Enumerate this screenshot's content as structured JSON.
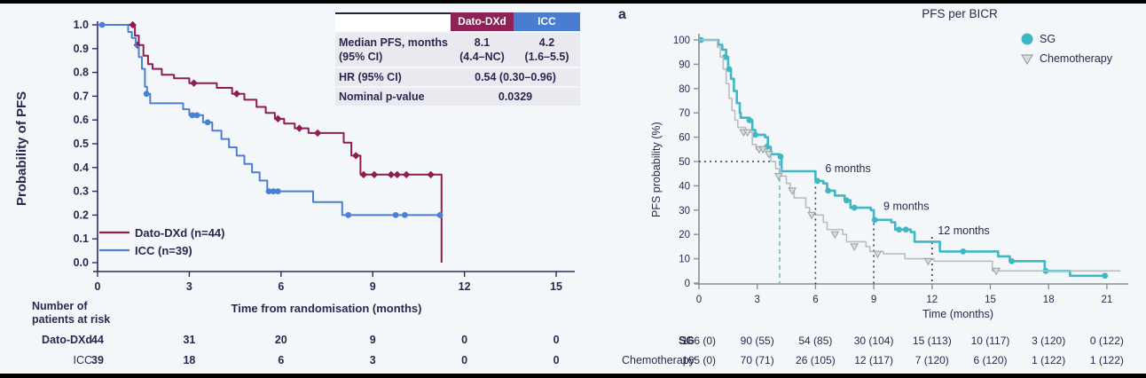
{
  "page": {
    "background": "#f4f7f9",
    "letterbox_color": "#000000",
    "text_color": "#2b2750"
  },
  "chart_data": [
    {
      "type": "line",
      "subtype": "kaplan-meier-step",
      "title": "",
      "xlabel": "Time from randomisation (months)",
      "ylabel": "Probability of PFS",
      "xlim": [
        0,
        15.6
      ],
      "ylim": [
        0.0,
        1.0
      ],
      "grid": false,
      "xticks": [
        "0",
        "3",
        "6",
        "9",
        "12",
        "15"
      ],
      "yticks": [
        "1.0",
        "0.9",
        "0.8",
        "0.7",
        "0.6",
        "0.5",
        "0.4",
        "0.3",
        "0.2",
        "0.1",
        "0.0"
      ],
      "legend_position": "lower-left-inside",
      "series": [
        {
          "name": "Dato-DXd (n=44)",
          "color": "#8f1d54",
          "marker": "diamond",
          "steps": [
            [
              0,
              1.0
            ],
            [
              1.1,
              1.0
            ],
            [
              1.22,
              0.955
            ],
            [
              1.35,
              0.915
            ],
            [
              1.5,
              0.87
            ],
            [
              1.65,
              0.835
            ],
            [
              1.8,
              0.815
            ],
            [
              2.1,
              0.79
            ],
            [
              2.5,
              0.775
            ],
            [
              3.0,
              0.755
            ],
            [
              3.9,
              0.735
            ],
            [
              4.4,
              0.71
            ],
            [
              4.8,
              0.685
            ],
            [
              5.2,
              0.655
            ],
            [
              5.5,
              0.63
            ],
            [
              5.8,
              0.605
            ],
            [
              6.1,
              0.585
            ],
            [
              6.45,
              0.565
            ],
            [
              6.9,
              0.545
            ],
            [
              8.05,
              0.505
            ],
            [
              8.3,
              0.45
            ],
            [
              8.6,
              0.37
            ],
            [
              11.25,
              0.37
            ],
            [
              11.25,
              0.0
            ]
          ],
          "censors": [
            [
              1.15,
              1.0
            ],
            [
              1.3,
              0.915
            ],
            [
              3.15,
              0.755
            ],
            [
              4.55,
              0.71
            ],
            [
              5.9,
              0.605
            ],
            [
              6.6,
              0.565
            ],
            [
              7.2,
              0.545
            ],
            [
              8.45,
              0.45
            ],
            [
              8.7,
              0.37
            ],
            [
              9.05,
              0.37
            ],
            [
              9.6,
              0.37
            ],
            [
              9.8,
              0.37
            ],
            [
              10.1,
              0.37
            ],
            [
              10.9,
              0.37
            ]
          ]
        },
        {
          "name": "ICC (n=39)",
          "color": "#4b7fd4",
          "marker": "circle",
          "steps": [
            [
              0,
              1.0
            ],
            [
              0.9,
              1.0
            ],
            [
              1.0,
              0.97
            ],
            [
              1.12,
              0.945
            ],
            [
              1.25,
              0.91
            ],
            [
              1.35,
              0.865
            ],
            [
              1.45,
              0.815
            ],
            [
              1.55,
              0.74
            ],
            [
              1.62,
              0.71
            ],
            [
              1.72,
              0.67
            ],
            [
              2.8,
              0.645
            ],
            [
              3.0,
              0.62
            ],
            [
              3.45,
              0.59
            ],
            [
              3.75,
              0.555
            ],
            [
              4.05,
              0.52
            ],
            [
              4.3,
              0.485
            ],
            [
              4.55,
              0.45
            ],
            [
              4.8,
              0.415
            ],
            [
              5.05,
              0.38
            ],
            [
              5.3,
              0.345
            ],
            [
              5.55,
              0.3
            ],
            [
              7.05,
              0.255
            ],
            [
              8.0,
              0.2
            ],
            [
              11.2,
              0.2
            ]
          ],
          "censors": [
            [
              0.15,
              1.0
            ],
            [
              1.6,
              0.71
            ],
            [
              3.1,
              0.62
            ],
            [
              3.25,
              0.62
            ],
            [
              3.6,
              0.59
            ],
            [
              5.6,
              0.3
            ],
            [
              5.75,
              0.3
            ],
            [
              5.9,
              0.3
            ],
            [
              8.2,
              0.2
            ],
            [
              9.75,
              0.2
            ],
            [
              10.05,
              0.2
            ],
            [
              11.2,
              0.2
            ]
          ]
        }
      ],
      "inset_table": {
        "col_headers": [
          "Dato-DXd",
          "ICC"
        ],
        "header_colors": [
          "#8d2257",
          "#4a7cd0"
        ],
        "row1_label_line1": "Median PFS, months",
        "row1_label_line2": "(95% CI)",
        "row1_dato_line1": "8.1",
        "row1_dato_line2": "(4.4–NC)",
        "row1_icc_line1": "4.2",
        "row1_icc_line2": "(1.6–5.5)",
        "row2_label": "HR (95% CI)",
        "row2_value": "0.54 (0.30–0.96)",
        "row3_label": "Nominal p-value",
        "row3_value": "0.0329"
      },
      "risk_table": {
        "label_line1": "Number of",
        "label_line2": "patients at risk",
        "rows": [
          {
            "name": "Dato-DXd",
            "values": [
              "44",
              "31",
              "20",
              "9",
              "0",
              "0"
            ]
          },
          {
            "name": "ICC",
            "values": [
              "39",
              "18",
              "6",
              "3",
              "0",
              "0"
            ]
          }
        ]
      }
    },
    {
      "type": "line",
      "subtype": "kaplan-meier-step",
      "panel_label": "a",
      "title": "PFS per BICR",
      "xlabel": "Time (months)",
      "ylabel": "PFS probability (%)",
      "xlim": [
        0,
        22
      ],
      "ylim": [
        0,
        100
      ],
      "grid": false,
      "xticks": [
        "0",
        "3",
        "6",
        "9",
        "12",
        "15",
        "18",
        "21"
      ],
      "yticks": [
        "100",
        "90",
        "80",
        "70",
        "60",
        "50",
        "40",
        "30",
        "20",
        "10",
        "0"
      ],
      "legend_position": "upper-right-outside",
      "series": [
        {
          "name": "SG",
          "color": "#3db8c4",
          "marker": "circle",
          "steps": [
            [
              0,
              100
            ],
            [
              0.8,
              100
            ],
            [
              1.0,
              98
            ],
            [
              1.2,
              96
            ],
            [
              1.4,
              93
            ],
            [
              1.5,
              88
            ],
            [
              1.65,
              84
            ],
            [
              1.8,
              79
            ],
            [
              1.95,
              74
            ],
            [
              2.1,
              70
            ],
            [
              2.15,
              68
            ],
            [
              2.6,
              67
            ],
            [
              2.75,
              63
            ],
            [
              2.9,
              61
            ],
            [
              3.4,
              60
            ],
            [
              3.55,
              56
            ],
            [
              3.7,
              53
            ],
            [
              4.15,
              52
            ],
            [
              4.25,
              46
            ],
            [
              5.85,
              46
            ],
            [
              6.0,
              42
            ],
            [
              6.4,
              41
            ],
            [
              6.6,
              38
            ],
            [
              7.0,
              36
            ],
            [
              7.5,
              34
            ],
            [
              7.8,
              31
            ],
            [
              8.85,
              30
            ],
            [
              9.0,
              26
            ],
            [
              9.9,
              25
            ],
            [
              10.1,
              22
            ],
            [
              10.9,
              21
            ],
            [
              11.1,
              17
            ],
            [
              12.2,
              17
            ],
            [
              12.4,
              13
            ],
            [
              15.2,
              13
            ],
            [
              15.4,
              11
            ],
            [
              16.0,
              9
            ],
            [
              17.7,
              9
            ],
            [
              17.8,
              5
            ],
            [
              19.0,
              5
            ],
            [
              19.1,
              3
            ],
            [
              20.9,
              3
            ]
          ],
          "censors": [
            [
              0.1,
              100
            ],
            [
              1.35,
              93
            ],
            [
              1.55,
              88
            ],
            [
              2.6,
              67
            ],
            [
              2.9,
              61
            ],
            [
              3.5,
              56
            ],
            [
              4.2,
              52
            ],
            [
              6.1,
              42
            ],
            [
              6.65,
              38
            ],
            [
              7.6,
              34
            ],
            [
              8.0,
              31
            ],
            [
              9.05,
              26
            ],
            [
              10.3,
              22
            ],
            [
              10.65,
              22
            ],
            [
              13.6,
              13
            ],
            [
              16.1,
              9
            ],
            [
              17.85,
              5
            ],
            [
              20.9,
              3
            ]
          ]
        },
        {
          "name": "Chemotherapy",
          "color": "#b9bdc1",
          "marker": "triangle-down",
          "steps": [
            [
              0,
              100
            ],
            [
              0.75,
              100
            ],
            [
              0.95,
              97
            ],
            [
              1.1,
              93
            ],
            [
              1.25,
              88
            ],
            [
              1.4,
              82
            ],
            [
              1.55,
              76
            ],
            [
              1.7,
              71
            ],
            [
              1.85,
              67
            ],
            [
              2.0,
              64
            ],
            [
              2.4,
              62
            ],
            [
              2.75,
              57
            ],
            [
              2.95,
              55
            ],
            [
              3.5,
              53
            ],
            [
              3.7,
              50
            ],
            [
              3.95,
              47
            ],
            [
              4.2,
              44
            ],
            [
              4.5,
              41
            ],
            [
              4.7,
              38
            ],
            [
              4.9,
              35
            ],
            [
              5.5,
              31
            ],
            [
              5.7,
              28
            ],
            [
              6.4,
              25
            ],
            [
              6.6,
              22
            ],
            [
              7.4,
              20
            ],
            [
              7.6,
              17
            ],
            [
              8.6,
              15
            ],
            [
              8.8,
              13
            ],
            [
              9.5,
              12
            ],
            [
              10.6,
              10
            ],
            [
              12.1,
              9
            ],
            [
              14.9,
              9
            ],
            [
              15.1,
              5
            ],
            [
              21.7,
              5
            ]
          ],
          "censors": [
            [
              2.3,
              62
            ],
            [
              2.5,
              62
            ],
            [
              3.1,
              55
            ],
            [
              3.3,
              55
            ],
            [
              3.6,
              53
            ],
            [
              4.1,
              44
            ],
            [
              4.8,
              38
            ],
            [
              5.8,
              28
            ],
            [
              7.0,
              20
            ],
            [
              8.0,
              15
            ],
            [
              9.2,
              12
            ],
            [
              11.8,
              9
            ],
            [
              15.3,
              5
            ]
          ]
        }
      ],
      "annotations": [
        {
          "text": "6 months",
          "x": 6.5,
          "y": 47
        },
        {
          "text": "9 months",
          "x": 9.5,
          "y": 31.5
        },
        {
          "text": "12 months",
          "x": 12.3,
          "y": 21.5
        }
      ],
      "guide_lines": [
        {
          "x": 6,
          "top": 44
        },
        {
          "x": 9,
          "top": 29
        },
        {
          "x": 12,
          "top": 19
        }
      ],
      "median_line": {
        "y": 50,
        "x": 4.15
      },
      "risk_table": {
        "rows": [
          {
            "name": "SG",
            "values": [
              "166 (0)",
              "90 (55)",
              "54 (85)",
              "30 (104)",
              "15 (113)",
              "10 (117)",
              "3 (120)",
              "0 (122)"
            ]
          },
          {
            "name": "Chemotherapy",
            "values": [
              "165 (0)",
              "70 (71)",
              "26 (105)",
              "12 (117)",
              "7 (120)",
              "6 (120)",
              "1 (122)",
              "1 (122)"
            ]
          }
        ]
      }
    }
  ]
}
